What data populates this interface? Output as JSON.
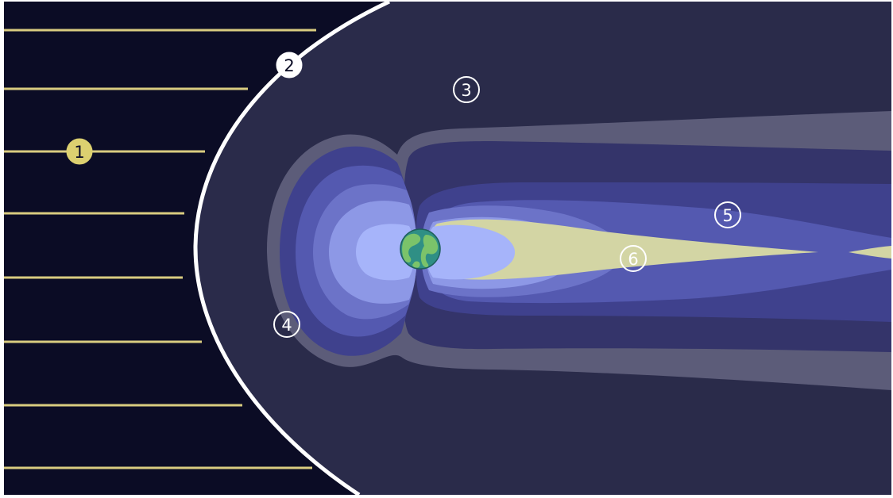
{
  "colors": {
    "solar_wind_background": "#0b0c25",
    "magnetosheath": "#2a2b4a",
    "bow_shock_line": "#ffffff",
    "solar_wind_lines": "#d9cc80",
    "outer_tail_gray": "#5c5c79",
    "lobe_1": "#34346a",
    "lobe_2": "#3f418d",
    "lobe_3": "#5459b0",
    "lobe_4": "#6c73c8",
    "lobe_5": "#8d98e6",
    "inner_core": "#a6b4fa",
    "plasma_sheet": "#d3d5a4",
    "plasma_sheet_core": "#e8e6b2",
    "earth_ocean": "#2f8f85",
    "earth_land": "#7bc36a",
    "marker_yellow": "#dcd070",
    "marker_outline": "#ffffff"
  },
  "markers": [
    {
      "id": "1",
      "label": "1",
      "style": "filled-yellow"
    },
    {
      "id": "2",
      "label": "2",
      "style": "filled-white"
    },
    {
      "id": "3",
      "label": "3",
      "style": "outline"
    },
    {
      "id": "4",
      "label": "4",
      "style": "outline"
    },
    {
      "id": "5",
      "label": "5",
      "style": "outline"
    },
    {
      "id": "6",
      "label": "6",
      "style": "outline-yellow"
    }
  ],
  "icons": {
    "earth": "earth-icon"
  }
}
